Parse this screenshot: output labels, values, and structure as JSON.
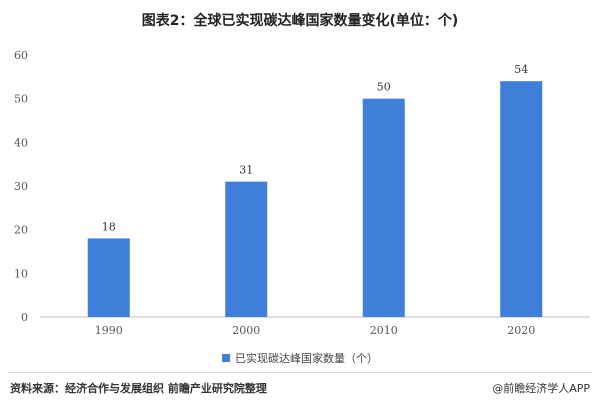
{
  "title": "图表2：全球已实现碳达峰国家数量变化(单位：个)",
  "chart_data": {
    "type": "bar",
    "categories": [
      "1990",
      "2000",
      "2010",
      "2020"
    ],
    "series": [
      {
        "name": "已实现碳达峰国家数量（个）",
        "values": [
          18,
          31,
          50,
          54
        ]
      }
    ],
    "ylim": [
      0,
      60
    ],
    "yticks": [
      0,
      10,
      20,
      30,
      40,
      50,
      60
    ],
    "xlabel": "",
    "ylabel": "",
    "grid": false,
    "legend": "bottom",
    "bar_color": "#3f7fd9"
  },
  "source": "资料来源：经济合作与发展组织 前瞻产业研究院整理",
  "credit": "@前瞻经济学人APP"
}
